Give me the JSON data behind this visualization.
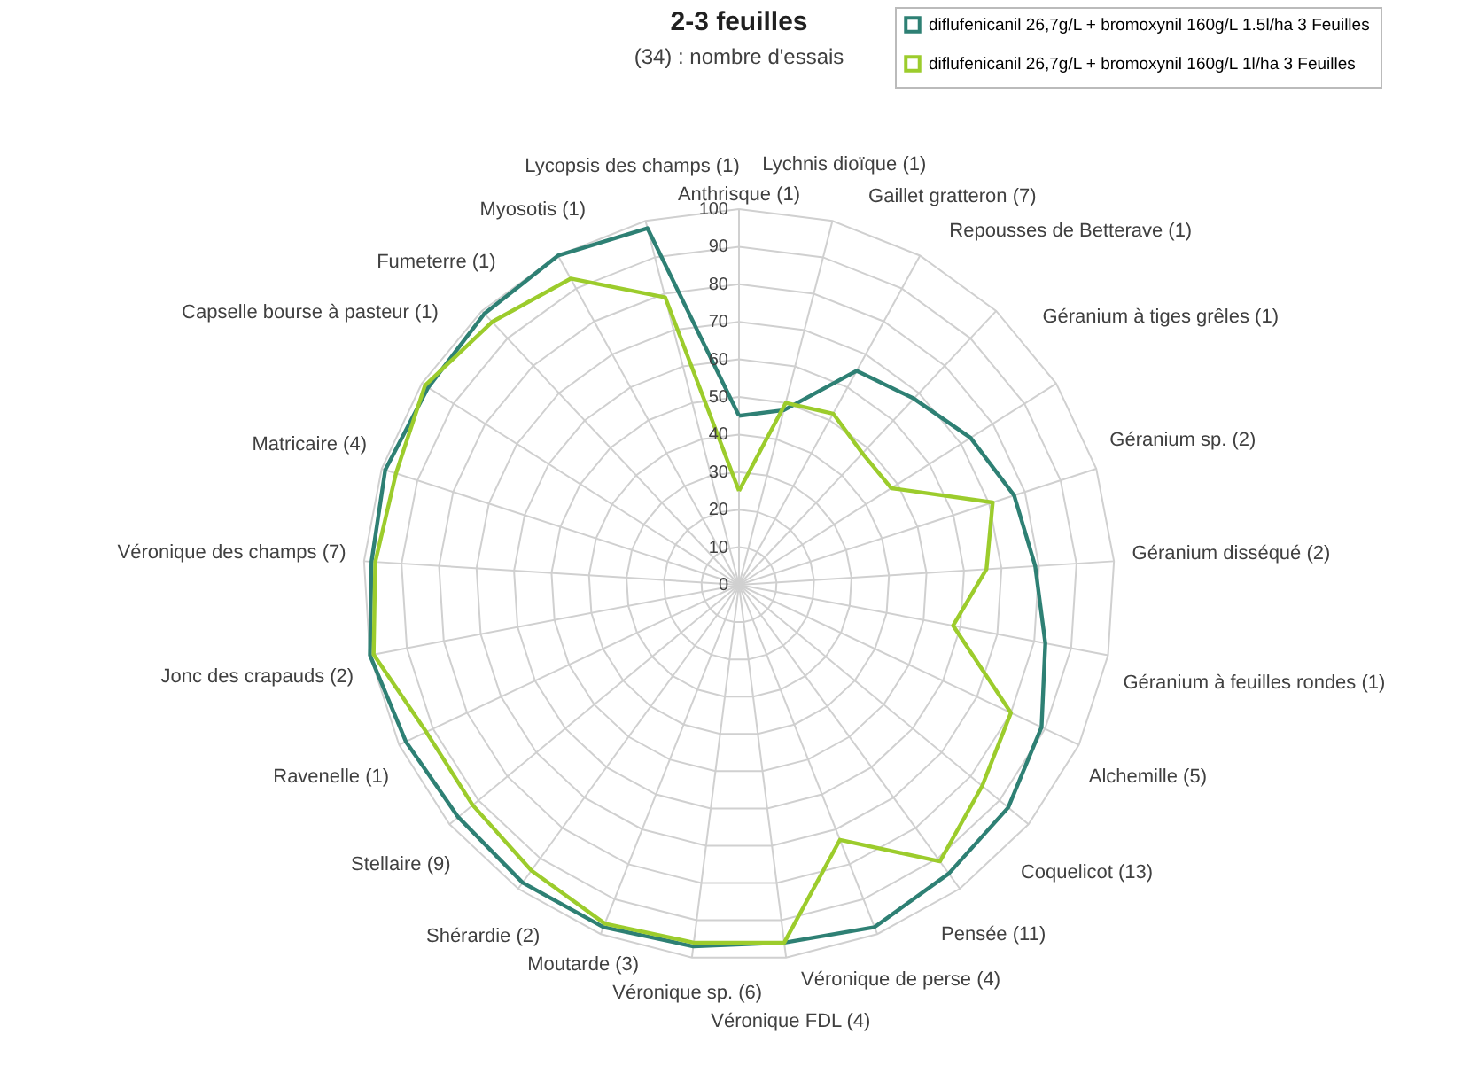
{
  "chart_data": {
    "type": "radar",
    "title": "2-3 feuilles",
    "subtitle": "(34) : nombre d'essais",
    "categories": [
      "Anthrisque (1)",
      "Lychnis dioïque (1)",
      "Gaillet gratteron (7)",
      "Repousses de Betterave (1)",
      "Géranium à tiges grêles (1)",
      "Géranium sp. (2)",
      "Géranium disséqué (2)",
      "Géranium à feuilles rondes (1)",
      "Alchemille (5)",
      "Coquelicot (13)",
      "Pensée (11)",
      "Véronique de perse (4)",
      "Véronique FDL (4)",
      "Véronique sp. (6)",
      "Moutarde (3)",
      "Shérardie (2)",
      "Stellaire (9)",
      "Ravenelle (1)",
      "Jonc des crapauds (2)",
      "Véronique des champs (7)",
      "Matricaire (4)",
      "Capselle bourse à pasteur (1)",
      "Fumeterre (1)",
      "Myosotis (1)",
      "Lycopsis des champs (1)"
    ],
    "series": [
      {
        "name": "diflufenicanil 26,7g/L + bromoxynil 160g/L 1.5l/ha 3 Feuilles",
        "color": "#2e8074",
        "values": [
          45,
          48,
          65,
          68,
          73,
          77,
          79,
          83,
          89,
          93,
          95,
          98,
          96,
          97,
          98,
          98,
          97,
          98,
          100,
          98,
          99,
          98,
          99,
          100,
          98
        ]
      },
      {
        "name": "diflufenicanil 26,7g/L + bromoxynil 160g/L 1l/ha 3 Feuilles",
        "color": "#9ccc2c",
        "values": [
          25,
          50,
          52,
          48,
          48,
          71,
          66,
          58,
          80,
          84,
          91,
          73,
          96,
          96,
          97,
          94,
          92,
          92,
          99,
          97,
          96,
          99,
          96,
          93,
          79
        ]
      }
    ],
    "ylim": [
      0,
      100
    ],
    "yticks": [
      0,
      10,
      20,
      30,
      40,
      50,
      60,
      70,
      80,
      90,
      100
    ],
    "grid": true,
    "legend": "top right"
  }
}
